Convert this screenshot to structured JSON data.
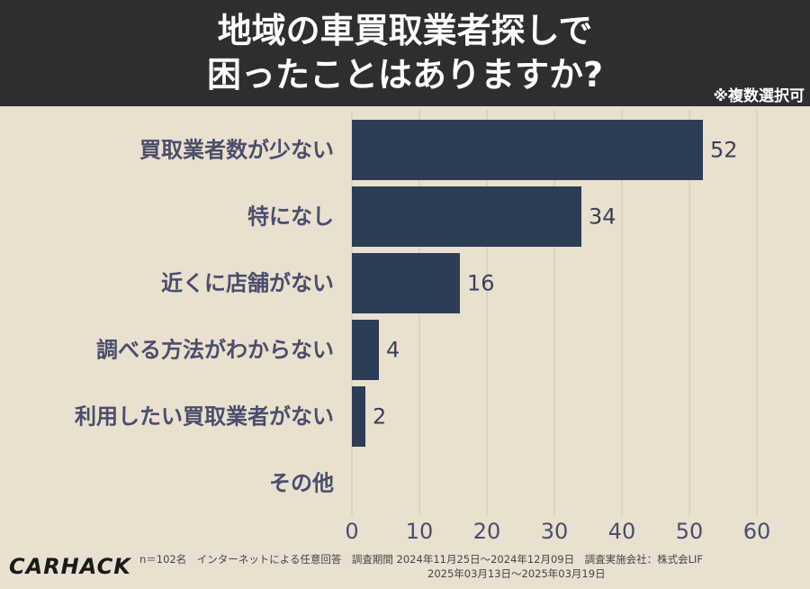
{
  "header": {
    "title_line1": "地域の車買取業者探しで",
    "title_line2": "困ったことはありますか?",
    "note": "※複数選択可"
  },
  "chart_data": {
    "type": "bar",
    "orientation": "horizontal",
    "categories": [
      "買取業者数が少ない",
      "特になし",
      "近くに店舗がない",
      "調べる方法がわからない",
      "利用したい買取業者がない",
      "その他"
    ],
    "values": [
      52,
      34,
      16,
      4,
      2,
      0
    ],
    "value_labels": [
      "52",
      "34",
      "16",
      "4",
      "2",
      ""
    ],
    "xlim": [
      0,
      60
    ],
    "xticks": [
      0,
      10,
      20,
      30,
      40,
      50,
      60
    ],
    "grid": true,
    "bar_color": "#2c3e55",
    "title": "地域の車買取業者探しで困ったことはありますか?"
  },
  "footer": {
    "logo": "CARHACK",
    "line1": "n＝102名　インターネットによる任意回答　調査期間  2024年11月25日〜2024年12月09日　調査実施会社：株式会LIF",
    "line2": "2025年03月13日〜2025年03月19日"
  },
  "colors": {
    "background": "#e9e0cf",
    "header": "#2e2e2e",
    "bar": "#2c3e55",
    "category_text": "#4a4e6c",
    "grid": "#cfc6b5"
  }
}
